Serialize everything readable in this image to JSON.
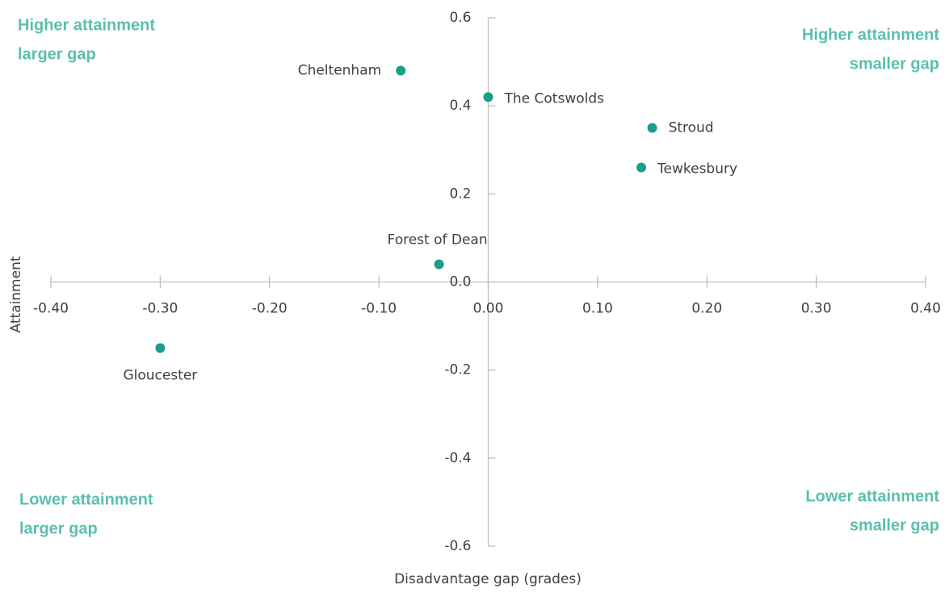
{
  "chart_data": {
    "type": "scatter",
    "x_label": "Disadvantage gap (grades)",
    "y_label": "Attainment",
    "color": "#1a9e8a",
    "annotation_color": "#5bbfad",
    "points": [
      {
        "label": "Cheltenham",
        "x": -0.08,
        "y": 0.48
      },
      {
        "label": "The Cotswolds",
        "x": 0.0,
        "y": 0.42
      },
      {
        "label": "Stroud",
        "x": 0.15,
        "y": 0.35
      },
      {
        "label": "Tewkesbury",
        "x": 0.14,
        "y": 0.26
      },
      {
        "label": "Forest of Dean",
        "x": -0.045,
        "y": 0.04
      },
      {
        "label": "Gloucester",
        "x": -0.3,
        "y": -0.15
      }
    ],
    "annotations": [
      {
        "lines": [
          "Higher attainment",
          "larger gap"
        ]
      },
      {
        "lines": [
          "Higher attainment",
          "smaller gap"
        ]
      },
      {
        "lines": [
          "Lower attainment",
          "larger gap"
        ]
      },
      {
        "lines": [
          "Lower attainment",
          "smaller gap"
        ]
      }
    ],
    "xlim": [
      -0.4,
      0.4
    ],
    "ylim": [
      -0.6,
      0.6
    ],
    "xticks": [
      {
        "value": -0.4,
        "label": "-0.40"
      },
      {
        "value": -0.3,
        "label": "-0.30"
      },
      {
        "value": -0.2,
        "label": "-0.20"
      },
      {
        "value": -0.1,
        "label": "-0.10"
      },
      {
        "value": 0,
        "label": "0.00"
      },
      {
        "value": 0.1,
        "label": "0.10"
      },
      {
        "value": 0.2,
        "label": "0.20"
      },
      {
        "value": 0.3,
        "label": "0.30"
      },
      {
        "value": 0.4,
        "label": "0.40"
      }
    ],
    "yticks": [
      0.6,
      0.4,
      0.2,
      {
        "value": 0,
        "label": "0.0"
      },
      -0.2,
      -0.4,
      -0.6
    ]
  }
}
